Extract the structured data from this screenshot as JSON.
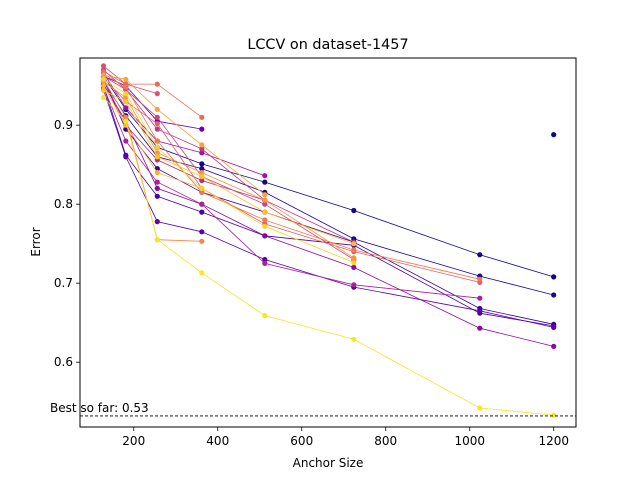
{
  "chart_data": {
    "type": "line",
    "title": "LCCV on dataset-1457",
    "xlabel": "Anchor Size",
    "ylabel": "Error",
    "xlim": [
      72,
      1253
    ],
    "ylim": [
      0.518,
      0.985
    ],
    "xticks": [
      200,
      400,
      600,
      800,
      1000,
      1200
    ],
    "yticks": [
      0.6,
      0.7,
      0.8,
      0.9
    ],
    "xtick_labels": [
      "200",
      "400",
      "600",
      "800",
      "1000",
      "1200"
    ],
    "ytick_labels": [
      "0.6",
      "0.7",
      "0.8",
      "0.9"
    ],
    "grid": false,
    "best_line": {
      "label": "Best so far: 0.53",
      "y": 0.532
    },
    "colormap": "plasma",
    "series": [
      {
        "x": [
          128,
          181,
          256,
          362,
          512,
          724,
          1024,
          1200
        ],
        "y": [
          0.962,
          0.92,
          0.872,
          0.851,
          0.828,
          0.792,
          0.736,
          0.708
        ],
        "color": "#0d0887"
      },
      {
        "x": [
          128,
          181,
          256,
          362,
          512,
          724,
          1024,
          1200
        ],
        "y": [
          0.955,
          0.912,
          0.86,
          0.845,
          0.815,
          0.756,
          0.709,
          0.685
        ],
        "color": "#1e068f"
      },
      {
        "x": [
          128,
          181,
          256,
          362,
          512,
          724,
          1024,
          1200
        ],
        "y": [
          0.958,
          0.895,
          0.845,
          0.815,
          0.79,
          0.752,
          0.668,
          0.648
        ],
        "color": "#350498"
      },
      {
        "x": [
          128,
          181,
          256,
          362,
          512,
          724,
          1024,
          1200
        ],
        "y": [
          0.95,
          0.862,
          0.81,
          0.79,
          0.76,
          0.748,
          0.662,
          0.646
        ],
        "color": "#4903a0"
      },
      {
        "x": [
          128,
          181,
          256,
          362,
          512,
          724,
          1024,
          1200
        ],
        "y": [
          0.945,
          0.86,
          0.778,
          0.765,
          0.73,
          0.695,
          0.665,
          0.644
        ],
        "color": "#5c01a6"
      },
      {
        "x": [
          128,
          181,
          256,
          362
        ],
        "y": [
          0.962,
          0.95,
          0.905,
          0.895
        ],
        "color": "#6e00a8"
      },
      {
        "x": [
          128,
          181,
          256,
          362,
          512,
          724,
          1024,
          1200
        ],
        "y": [
          0.952,
          0.905,
          0.82,
          0.8,
          0.76,
          0.72,
          0.643,
          0.62
        ],
        "color": "#8a09a5"
      },
      {
        "x": [
          128,
          181,
          256,
          362,
          512
        ],
        "y": [
          0.966,
          0.922,
          0.88,
          0.865,
          0.836
        ],
        "color": "#9a179b"
      },
      {
        "x": [
          128,
          181,
          256,
          362,
          512,
          724,
          1024
        ],
        "y": [
          0.948,
          0.88,
          0.828,
          0.8,
          0.725,
          0.698,
          0.681
        ],
        "color": "#a72197"
      },
      {
        "x": [
          128,
          181,
          256,
          362,
          512,
          724
        ],
        "y": [
          0.958,
          0.9,
          0.856,
          0.83,
          0.805,
          0.752
        ],
        "color": "#b42e8d"
      },
      {
        "x": [
          128,
          181,
          256,
          362,
          512
        ],
        "y": [
          0.97,
          0.945,
          0.895,
          0.87,
          0.805
        ],
        "color": "#c03a83"
      },
      {
        "x": [
          128,
          181,
          256,
          362,
          512,
          724
        ],
        "y": [
          0.962,
          0.945,
          0.91,
          0.835,
          0.8,
          0.73
        ],
        "color": "#cc4778"
      },
      {
        "x": [
          128,
          181,
          256
        ],
        "y": [
          0.975,
          0.952,
          0.94
        ],
        "color": "#d5546e"
      },
      {
        "x": [
          128,
          181,
          256,
          362,
          512,
          724,
          1024
        ],
        "y": [
          0.96,
          0.93,
          0.902,
          0.82,
          0.775,
          0.74,
          0.701
        ],
        "color": "#de6164"
      },
      {
        "x": [
          128,
          181,
          256,
          362
        ],
        "y": [
          0.968,
          0.952,
          0.952,
          0.91
        ],
        "color": "#e66c5c"
      },
      {
        "x": [
          128,
          181,
          256,
          362,
          512,
          724,
          1024
        ],
        "y": [
          0.965,
          0.948,
          0.88,
          0.815,
          0.78,
          0.742,
          0.705
        ],
        "color": "#ed7953"
      },
      {
        "x": [
          128,
          181,
          256,
          362
        ],
        "y": [
          0.958,
          0.91,
          0.755,
          0.753
        ],
        "color": "#f3864a"
      },
      {
        "x": [
          128,
          181,
          256,
          362,
          512,
          724
        ],
        "y": [
          0.955,
          0.935,
          0.865,
          0.84,
          0.805,
          0.732
        ],
        "color": "#f79440"
      },
      {
        "x": [
          128,
          181,
          256,
          362,
          512
        ],
        "y": [
          0.963,
          0.958,
          0.92,
          0.875,
          0.812
        ],
        "color": "#fba238"
      },
      {
        "x": [
          128,
          181,
          256,
          362
        ],
        "y": [
          0.95,
          0.9,
          0.84,
          0.82
        ],
        "color": "#feb130"
      },
      {
        "x": [
          128,
          181,
          256,
          362,
          512,
          724
        ],
        "y": [
          0.944,
          0.93,
          0.86,
          0.835,
          0.79,
          0.75
        ],
        "color": "#fdc229"
      },
      {
        "x": [
          128,
          181,
          256,
          362,
          512,
          724
        ],
        "y": [
          0.958,
          0.94,
          0.872,
          0.82,
          0.772,
          0.726
        ],
        "color": "#fbd324"
      },
      {
        "x": [
          128,
          181,
          256,
          362,
          512,
          724,
          1024,
          1200
        ],
        "y": [
          0.935,
          0.905,
          0.755,
          0.713,
          0.659,
          0.629,
          0.542,
          0.533
        ],
        "color": "#f5e626"
      },
      {
        "x": [
          1200
        ],
        "y": [
          0.888
        ],
        "color": "#0d0887"
      }
    ]
  }
}
